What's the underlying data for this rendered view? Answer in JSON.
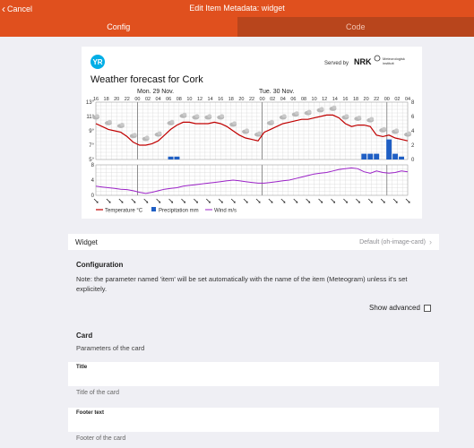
{
  "navbar": {
    "back_label": "Cancel",
    "title": "Edit Item Metadata: widget"
  },
  "tabs": [
    {
      "label": "Config",
      "active": true
    },
    {
      "label": "Code",
      "active": false
    }
  ],
  "meteogram": {
    "logo": "YR",
    "served_by": "Served by",
    "provider_1": "NRK",
    "provider_2_line1": "Meteorologisk",
    "provider_2_line2": "institutt",
    "title": "Weather forecast for Cork",
    "day1": "Mon. 29 Nov.",
    "day2": "Tue. 30 Nov.",
    "hours": [
      "16",
      "18",
      "20",
      "22",
      "00",
      "02",
      "04",
      "06",
      "08",
      "10",
      "12",
      "14",
      "16",
      "18",
      "20",
      "22",
      "00",
      "02",
      "04",
      "06",
      "08",
      "10",
      "12",
      "14",
      "16",
      "18",
      "20",
      "22",
      "00",
      "02",
      "04"
    ],
    "temp_axis": [
      "13°",
      "11°",
      "9°",
      "7°",
      "5°"
    ],
    "precip_axis": [
      "8",
      "6",
      "4",
      "2",
      "0"
    ],
    "wind_axis": [
      "8",
      "4",
      "0"
    ],
    "legend": {
      "temperature": "Temperature °C",
      "precipitation": "Precipitation mm",
      "wind": "Wind m/s"
    },
    "colors": {
      "temperature": "#c00000",
      "precipitation": "#1f5fc4",
      "wind": "#9b22c7",
      "yr_logo": "#00aee6"
    },
    "temperature": [
      10,
      9.6,
      9.2,
      9,
      8.8,
      8.2,
      7.4,
      7,
      7,
      7.2,
      7.6,
      8.4,
      9.2,
      9.8,
      10.2,
      10.2,
      10,
      10,
      10,
      10.2,
      10,
      9.6,
      9,
      8.4,
      8,
      7.8,
      7.6,
      8.8,
      9.2,
      9.6,
      10,
      10.2,
      10.4,
      10.6,
      10.6,
      10.8,
      11,
      11.2,
      11.2,
      10.8,
      10,
      9.6,
      9.8,
      9.8,
      9.6,
      8.4,
      8.2,
      8.4,
      8,
      7.8,
      7.6
    ],
    "precipitation": [
      0,
      0,
      0,
      0,
      0,
      0,
      0,
      0,
      0,
      0,
      0,
      0,
      0.4,
      0.4,
      0,
      0,
      0,
      0,
      0,
      0,
      0,
      0,
      0,
      0,
      0,
      0,
      0,
      0,
      0,
      0,
      0,
      0,
      0,
      0,
      0,
      0,
      0,
      0,
      0,
      0,
      0,
      0,
      0,
      0.8,
      0.8,
      0.8,
      0,
      2.8,
      0.8,
      0.4,
      0
    ],
    "wind": [
      2.4,
      2.2,
      2.0,
      1.8,
      1.6,
      1.5,
      1.2,
      0.8,
      0.5,
      0.8,
      1.2,
      1.6,
      1.8,
      2.0,
      2.4,
      2.6,
      2.8,
      3.0,
      3.2,
      3.4,
      3.6,
      3.8,
      4.0,
      3.8,
      3.6,
      3.4,
      3.2,
      3.2,
      3.4,
      3.6,
      3.8,
      4.0,
      4.4,
      4.8,
      5.2,
      5.6,
      5.8,
      6.0,
      6.4,
      6.8,
      7.0,
      7.2,
      7.0,
      6.2,
      5.8,
      6.4,
      6.0,
      5.8,
      6.0,
      6.4,
      6.2
    ]
  },
  "widget_row": {
    "label": "Widget",
    "value": "Default (oh-image-card)"
  },
  "configuration": {
    "heading": "Configuration",
    "note": "Note: the parameter named 'item' will be set automatically with the name of the item (Meteogram) unless it's set explicitely.",
    "show_advanced": "Show advanced"
  },
  "card_section": {
    "heading": "Card",
    "subtitle": "Parameters of the card",
    "fields": [
      {
        "label": "Title",
        "value": "",
        "hint": "Title of the card"
      },
      {
        "label": "Footer text",
        "value": "",
        "hint": "Footer of the card"
      }
    ]
  }
}
